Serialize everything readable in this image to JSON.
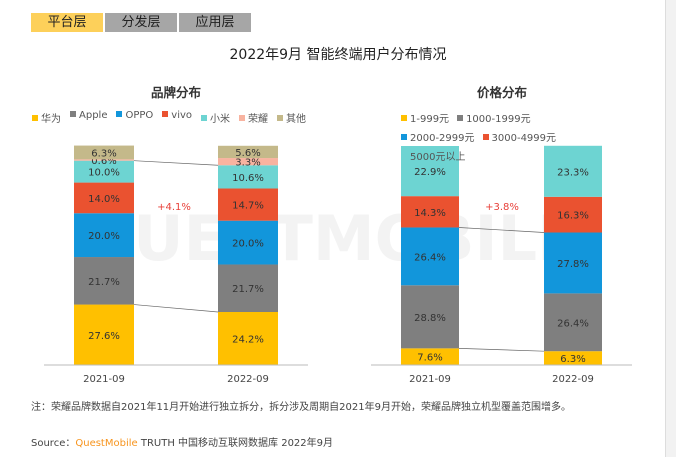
{
  "tabs": [
    {
      "label": "平台层",
      "active": true
    },
    {
      "label": "分发层",
      "active": false
    },
    {
      "label": "应用层",
      "active": false
    }
  ],
  "title": "2022年9月 智能终端用户分布情况",
  "note": "注：荣耀品牌数据自2021年11月开始进行独立拆分，拆分涉及周期自2021年9月开始，荣耀品牌独立机型覆盖范围增多。",
  "source": {
    "label": "Source：",
    "brand": "QuestMobile",
    "rest": "TRUTH 中国移动互联网数据库 2022年9月"
  },
  "watermark": "QUESTMOBILE",
  "chart_data": [
    {
      "type": "bar",
      "stacked": true,
      "title": "品牌分布",
      "categories": [
        "2021-09",
        "2022-09"
      ],
      "legend_position": "top",
      "annotation": "+4.1%",
      "annotation_color": "#e8413a",
      "series": [
        {
          "name": "华为",
          "color": "#ffc000",
          "values": [
            27.6,
            24.2
          ]
        },
        {
          "name": "Apple",
          "color": "#7f7f7f",
          "values": [
            21.7,
            21.7
          ]
        },
        {
          "name": "OPPO",
          "color": "#1296db",
          "values": [
            20.0,
            20.0
          ]
        },
        {
          "name": "vivo",
          "color": "#ea5230",
          "values": [
            14.0,
            14.7
          ]
        },
        {
          "name": "小米",
          "color": "#6dd4d2",
          "values": [
            10.0,
            10.6
          ]
        },
        {
          "name": "荣耀",
          "color": "#f8b3a0",
          "values": [
            0.6,
            3.3
          ]
        },
        {
          "name": "其他",
          "color": "#c4b98a",
          "values": [
            6.3,
            5.6
          ]
        }
      ]
    },
    {
      "type": "bar",
      "stacked": true,
      "title": "价格分布",
      "categories": [
        "2021-09",
        "2022-09"
      ],
      "legend_position": "top",
      "annotation": "+3.8%",
      "annotation_color": "#e8413a",
      "series": [
        {
          "name": "1-999元",
          "color": "#ffc000",
          "values": [
            7.6,
            6.3
          ]
        },
        {
          "name": "1000-1999元",
          "color": "#7f7f7f",
          "values": [
            28.8,
            26.4
          ]
        },
        {
          "name": "2000-2999元",
          "color": "#1296db",
          "values": [
            26.4,
            27.8
          ]
        },
        {
          "name": "3000-4999元",
          "color": "#ea5230",
          "values": [
            14.3,
            16.3
          ]
        },
        {
          "name": "5000元以上",
          "color": "#6dd4d2",
          "values": [
            22.9,
            23.3
          ]
        }
      ]
    }
  ]
}
